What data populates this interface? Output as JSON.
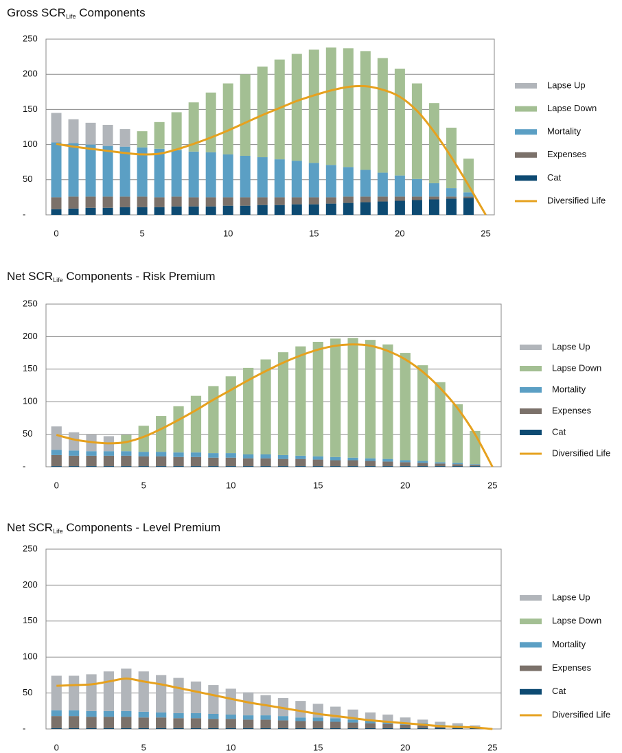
{
  "chart_data": [
    {
      "type": "bar",
      "title": {
        "main": "Gross SCR",
        "sub": "Life",
        "rest": " Components"
      },
      "x": [
        0,
        1,
        2,
        3,
        4,
        5,
        6,
        7,
        8,
        9,
        10,
        11,
        12,
        13,
        14,
        15,
        16,
        17,
        18,
        19,
        20,
        21,
        22,
        23,
        24
      ],
      "xlim": [
        -0.6,
        25.5
      ],
      "xticks": [
        0,
        5,
        10,
        15,
        20,
        25
      ],
      "ylim": [
        0,
        250
      ],
      "yticks": [
        {
          "value": 0,
          "label": "-"
        },
        50,
        100,
        150,
        200,
        250
      ],
      "grid": true,
      "stacked": true,
      "legend": "right",
      "series": [
        {
          "name": "Lapse Up",
          "type": "bar",
          "color": "#b1b5ba",
          "values": [
            42,
            34,
            31,
            30,
            25,
            0,
            0,
            0,
            0,
            0,
            0,
            0,
            0,
            0,
            0,
            0,
            0,
            0,
            0,
            0,
            0,
            0,
            0,
            0,
            0
          ]
        },
        {
          "name": "Lapse Down",
          "type": "bar",
          "color": "#a3bf93",
          "values": [
            0,
            0,
            0,
            0,
            0,
            23,
            38,
            54,
            70,
            85,
            101,
            116,
            129,
            142,
            152,
            161,
            167,
            169,
            169,
            163,
            152,
            136,
            114,
            86,
            48
          ]
        },
        {
          "name": "Mortality",
          "type": "bar",
          "color": "#5b9fc4",
          "values": [
            78,
            76,
            74,
            72,
            71,
            70,
            69,
            66,
            65,
            64,
            61,
            59,
            57,
            54,
            52,
            49,
            46,
            42,
            38,
            34,
            30,
            25,
            19,
            12,
            6
          ]
        },
        {
          "name": "Expenses",
          "type": "bar",
          "color": "#7b716a",
          "values": [
            17,
            17,
            16,
            16,
            15,
            15,
            14,
            14,
            13,
            13,
            12,
            12,
            11,
            11,
            10,
            10,
            9,
            9,
            8,
            7,
            6,
            5,
            4,
            3,
            2
          ]
        },
        {
          "name": "Cat",
          "type": "bar",
          "color": "#0d4a72",
          "values": [
            8,
            9,
            10,
            10,
            11,
            11,
            11,
            12,
            12,
            12,
            13,
            13,
            14,
            14,
            15,
            15,
            16,
            17,
            18,
            19,
            20,
            21,
            22,
            23,
            24
          ]
        },
        {
          "name": "Diversified Life",
          "type": "line",
          "color": "#e6a11e",
          "x": [
            0,
            1,
            2,
            3,
            4,
            5,
            6,
            7,
            8,
            9,
            10,
            11,
            12,
            13,
            14,
            15,
            16,
            17,
            18,
            19,
            20,
            21,
            22,
            23,
            24,
            25
          ],
          "values": [
            101,
            97,
            94,
            91,
            88,
            86,
            87,
            93,
            101,
            110,
            120,
            131,
            142,
            152,
            162,
            170,
            177,
            182,
            183,
            178,
            168,
            148,
            118,
            82,
            42,
            0
          ]
        }
      ]
    },
    {
      "type": "bar",
      "title": {
        "main": "Net SCR",
        "sub": "Life",
        "rest": " Components - Risk Premium"
      },
      "x": [
        0,
        1,
        2,
        3,
        4,
        5,
        6,
        7,
        8,
        9,
        10,
        11,
        12,
        13,
        14,
        15,
        16,
        17,
        18,
        19,
        20,
        21,
        22,
        23,
        24
      ],
      "xlim": [
        -0.6,
        25.5
      ],
      "xticks": [
        0,
        5,
        10,
        15,
        20,
        25
      ],
      "ylim": [
        0,
        250
      ],
      "yticks": [
        {
          "value": 0,
          "label": "-"
        },
        50,
        100,
        150,
        200,
        250
      ],
      "grid": true,
      "stacked": true,
      "legend": "right",
      "series": [
        {
          "name": "Lapse Up",
          "type": "bar",
          "color": "#b1b5ba",
          "values": [
            36,
            28,
            25,
            23,
            0,
            0,
            0,
            0,
            0,
            0,
            0,
            0,
            0,
            0,
            0,
            0,
            0,
            0,
            0,
            0,
            0,
            0,
            0,
            0,
            0
          ]
        },
        {
          "name": "Lapse Down",
          "type": "bar",
          "color": "#a3bf93",
          "values": [
            0,
            0,
            0,
            0,
            25,
            40,
            55,
            71,
            87,
            103,
            118,
            133,
            146,
            158,
            168,
            176,
            182,
            184,
            182,
            176,
            165,
            147,
            123,
            90,
            51
          ]
        },
        {
          "name": "Mortality",
          "type": "bar",
          "color": "#5b9fc4",
          "values": [
            8,
            8,
            7,
            7,
            7,
            7,
            7,
            7,
            7,
            7,
            7,
            6,
            6,
            6,
            5,
            5,
            5,
            4,
            4,
            4,
            3,
            3,
            2,
            2,
            1
          ]
        },
        {
          "name": "Expenses",
          "type": "bar",
          "color": "#7b716a",
          "values": [
            17,
            16,
            16,
            16,
            16,
            15,
            15,
            14,
            14,
            13,
            13,
            12,
            12,
            11,
            11,
            10,
            9,
            9,
            8,
            7,
            6,
            5,
            4,
            3,
            2
          ]
        },
        {
          "name": "Cat",
          "type": "bar",
          "color": "#0d4a72",
          "values": [
            1,
            1,
            1,
            1,
            1,
            1,
            1,
            1,
            1,
            1,
            1,
            1,
            1,
            1,
            1,
            1,
            1,
            1,
            1,
            1,
            1,
            1,
            1,
            1,
            1
          ]
        },
        {
          "name": "Diversified Life",
          "type": "line",
          "color": "#e6a11e",
          "x": [
            0,
            1,
            2,
            3,
            4,
            5,
            6,
            7,
            8,
            9,
            10,
            11,
            12,
            13,
            14,
            15,
            16,
            17,
            18,
            19,
            20,
            21,
            22,
            23,
            24,
            25
          ],
          "values": [
            49,
            42,
            38,
            36,
            38,
            46,
            58,
            72,
            87,
            103,
            118,
            133,
            147,
            160,
            171,
            180,
            186,
            188,
            186,
            178,
            165,
            146,
            121,
            90,
            50,
            0
          ]
        }
      ]
    },
    {
      "type": "bar",
      "title": {
        "main": "Net SCR",
        "sub": "Life",
        "rest": " Components - Level Premium"
      },
      "x": [
        0,
        1,
        2,
        3,
        4,
        5,
        6,
        7,
        8,
        9,
        10,
        11,
        12,
        13,
        14,
        15,
        16,
        17,
        18,
        19,
        20,
        21,
        22,
        23,
        24
      ],
      "xlim": [
        -0.6,
        25.5
      ],
      "xticks": [
        0,
        5,
        10,
        15,
        20,
        25
      ],
      "ylim": [
        0,
        250
      ],
      "yticks": [
        {
          "value": 0,
          "label": "-"
        },
        50,
        100,
        150,
        200,
        250
      ],
      "grid": true,
      "stacked": true,
      "legend": "right",
      "series": [
        {
          "name": "Lapse Up",
          "type": "bar",
          "color": "#b1b5ba",
          "values": [
            48,
            48,
            51,
            55,
            59,
            56,
            52,
            49,
            44,
            40,
            36,
            32,
            28,
            25,
            23,
            19,
            16,
            14,
            11,
            9,
            7,
            5,
            4,
            3,
            2
          ]
        },
        {
          "name": "Lapse Down",
          "type": "bar",
          "color": "#a3bf93",
          "values": [
            0,
            0,
            0,
            0,
            0,
            0,
            0,
            0,
            0,
            0,
            0,
            0,
            0,
            0,
            0,
            0,
            0,
            0,
            0,
            0,
            0,
            0,
            0,
            0,
            0
          ]
        },
        {
          "name": "Mortality",
          "type": "bar",
          "color": "#5b9fc4",
          "values": [
            8,
            8,
            8,
            8,
            8,
            8,
            7,
            7,
            7,
            7,
            6,
            6,
            6,
            6,
            5,
            5,
            5,
            4,
            4,
            4,
            3,
            3,
            2,
            2,
            1
          ]
        },
        {
          "name": "Expenses",
          "type": "bar",
          "color": "#7b716a",
          "values": [
            17,
            17,
            16,
            16,
            16,
            15,
            15,
            14,
            14,
            13,
            13,
            12,
            12,
            11,
            10,
            10,
            9,
            8,
            7,
            6,
            5,
            4,
            3,
            2,
            1
          ]
        },
        {
          "name": "Cat",
          "type": "bar",
          "color": "#0d4a72",
          "values": [
            1,
            1,
            1,
            1,
            1,
            1,
            1,
            1,
            1,
            1,
            1,
            1,
            1,
            1,
            1,
            1,
            1,
            1,
            1,
            1,
            1,
            1,
            1,
            1,
            1
          ]
        },
        {
          "name": "Diversified Life",
          "type": "line",
          "color": "#e6a11e",
          "x": [
            0,
            1,
            2,
            3,
            4,
            5,
            6,
            7,
            8,
            9,
            10,
            11,
            12,
            13,
            14,
            15,
            16,
            17,
            18,
            19,
            20,
            21,
            22,
            23,
            24,
            25
          ],
          "values": [
            60,
            61,
            62,
            66,
            70,
            66,
            62,
            57,
            52,
            47,
            42,
            37,
            33,
            29,
            25,
            21,
            18,
            15,
            12,
            10,
            8,
            6,
            4,
            3,
            2,
            0
          ]
        }
      ]
    }
  ]
}
